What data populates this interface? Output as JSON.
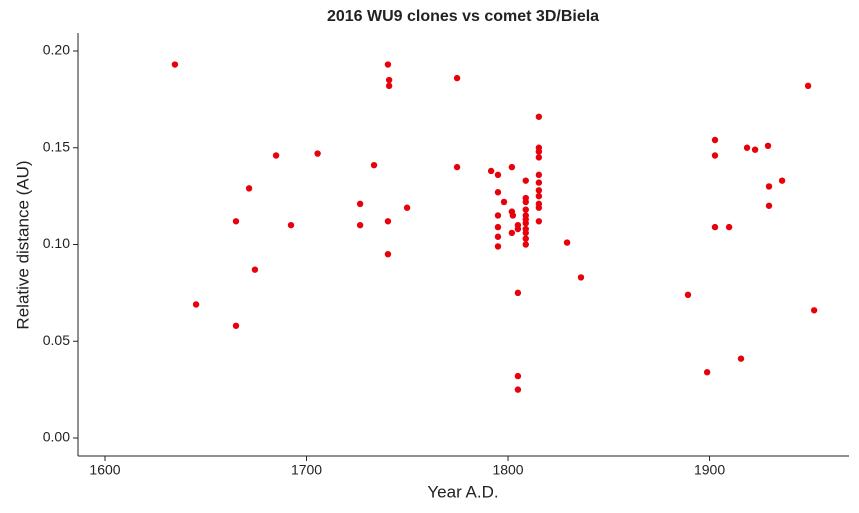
{
  "chart_data": {
    "type": "scatter",
    "title": "2016 WU9 clones vs comet 3D/Biela",
    "x_label": "Year A.D.",
    "y_label": "Relative distance (AU)",
    "color": "#e8000b",
    "x": [
      1634.7,
      1645.2,
      1665,
      1665,
      1671.5,
      1674.4,
      1684.9,
      1692.3,
      1705.5,
      1726.6,
      1726.6,
      1733.5,
      1740.4,
      1741,
      1741,
      1740.4,
      1740.4,
      1749.9,
      1774.7,
      1774.7,
      1791.6,
      1795,
      1795,
      1795,
      1795,
      1795,
      1795,
      1798,
      1801.9,
      1801.9,
      1802.4,
      1801.9,
      1804.9,
      1804.9,
      1804.9,
      1804.9,
      1804.9,
      1808.8,
      1808.8,
      1808.8,
      1808.8,
      1808.8,
      1808.8,
      1808.8,
      1808.8,
      1808.8,
      1808.8,
      1808.8,
      1815.3,
      1815.3,
      1815.3,
      1815.3,
      1815.3,
      1815.3,
      1815.3,
      1815.3,
      1815.3,
      1815.3,
      1815.3,
      1829.3,
      1836.2,
      1889.3,
      1898.8,
      1902.7,
      1902.7,
      1902.7,
      1909.7,
      1915.6,
      1918.6,
      1922.6,
      1929,
      1929.5,
      1929.5,
      1936,
      1948.9,
      1951.9
    ],
    "values": [
      0.193,
      0.069,
      0.112,
      0.058,
      0.129,
      0.087,
      0.146,
      0.11,
      0.147,
      0.121,
      0.11,
      0.141,
      0.193,
      0.185,
      0.182,
      0.112,
      0.095,
      0.119,
      0.186,
      0.14,
      0.138,
      0.136,
      0.127,
      0.115,
      0.109,
      0.104,
      0.099,
      0.122,
      0.14,
      0.117,
      0.115,
      0.106,
      0.11,
      0.108,
      0.075,
      0.032,
      0.025,
      0.133,
      0.124,
      0.122,
      0.118,
      0.115,
      0.113,
      0.111,
      0.108,
      0.106,
      0.103,
      0.1,
      0.166,
      0.15,
      0.148,
      0.145,
      0.136,
      0.132,
      0.128,
      0.125,
      0.121,
      0.119,
      0.112,
      0.101,
      0.083,
      0.074,
      0.034,
      0.154,
      0.146,
      0.109,
      0.109,
      0.041,
      0.15,
      0.149,
      0.151,
      0.13,
      0.12,
      0.133,
      0.182,
      0.066
    ],
    "xlim": [
      1586.6,
      1969.2
    ],
    "xticks": [
      1600,
      1700,
      1800,
      1900
    ],
    "ylim": [
      -0.0093,
      0.2093
    ],
    "yticks": [
      {
        "value": 0,
        "label": "0.00"
      },
      {
        "value": 0.05,
        "label": "0.05"
      },
      {
        "value": 0.1,
        "label": "0.10"
      },
      {
        "value": 0.15,
        "label": "0.15"
      },
      {
        "value": 0.2,
        "label": "0.20"
      }
    ],
    "grid": false
  }
}
